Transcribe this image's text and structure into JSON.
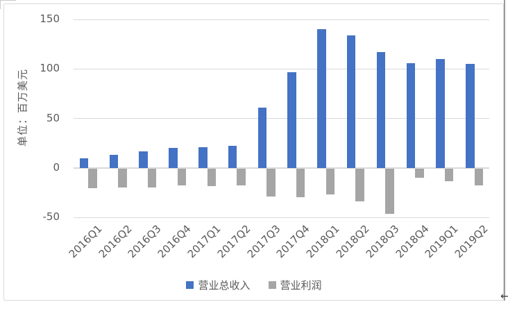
{
  "chart_data": {
    "type": "bar",
    "title": "",
    "y_axis_title": "单位：百万美元",
    "categories": [
      "2016Q1",
      "2016Q2",
      "2016Q3",
      "2016Q4",
      "2017Q1",
      "2017Q2",
      "2017Q3",
      "2017Q4",
      "2018Q1",
      "2018Q2",
      "2018Q3",
      "2018Q4",
      "2019Q1",
      "2019Q2"
    ],
    "series": [
      {
        "name": "营业总收入",
        "color": "#4472C4",
        "values": [
          10,
          13,
          17,
          20,
          21,
          22,
          61,
          97,
          140,
          134,
          117,
          106,
          110,
          105
        ]
      },
      {
        "name": "营业利润",
        "color": "#A5A5A5",
        "values": [
          -20,
          -19,
          -19,
          -17,
          -18,
          -17,
          -28,
          -29,
          -26,
          -33,
          -46,
          -9,
          -13,
          -17
        ]
      }
    ],
    "ylim": [
      -50,
      150
    ],
    "yticks": [
      150,
      100,
      50,
      0,
      -50
    ],
    "grid": true,
    "legend_position": "bottom",
    "colors": {
      "axis_text": "#595959",
      "gridline": "#D9D9D9",
      "axis_line": "#D9D9D9",
      "frame_border": "#D9D9D9"
    }
  },
  "decorations": {
    "cursor_arrow": "←"
  }
}
